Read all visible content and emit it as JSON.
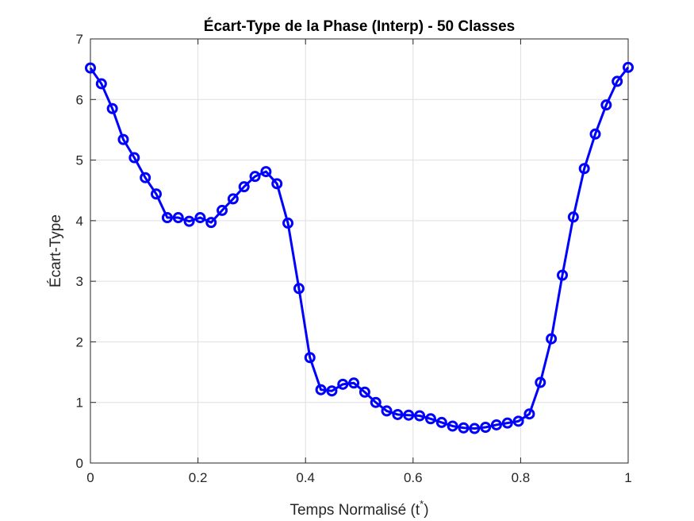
{
  "chart_data": {
    "type": "line",
    "title": "Écart-Type de la Phase (Interp) - 50 Classes",
    "xlabel": "Temps Normalisé (t",
    "xlabel_superscript": "*",
    "xlabel_suffix": ")",
    "ylabel": "Écart-Type",
    "xlim": [
      0,
      1
    ],
    "ylim": [
      0,
      7
    ],
    "xticks": [
      0,
      0.2,
      0.4,
      0.6,
      0.8,
      1
    ],
    "xtick_labels": [
      "0",
      "0.2",
      "0.4",
      "0.6",
      "0.8",
      "1"
    ],
    "yticks": [
      0,
      1,
      2,
      3,
      4,
      5,
      6,
      7
    ],
    "ytick_labels": [
      "0",
      "1",
      "2",
      "3",
      "4",
      "5",
      "6",
      "7"
    ],
    "grid": true,
    "color": "#0000ff",
    "marker": "circle",
    "series": [
      {
        "x": [
          0,
          0.0204,
          0.0408,
          0.0612,
          0.0816,
          0.102,
          0.1224,
          0.1429,
          0.1633,
          0.1837,
          0.2041,
          0.2245,
          0.2449,
          0.2653,
          0.2857,
          0.3061,
          0.3265,
          0.3469,
          0.3673,
          0.3878,
          0.4082,
          0.4286,
          0.449,
          0.4694,
          0.4898,
          0.5102,
          0.5306,
          0.551,
          0.5714,
          0.5918,
          0.6122,
          0.6327,
          0.6531,
          0.6735,
          0.6939,
          0.7143,
          0.7347,
          0.7551,
          0.7755,
          0.7959,
          0.8163,
          0.8367,
          0.8571,
          0.8776,
          0.898,
          0.9184,
          0.9388,
          0.9592,
          0.9796,
          1
        ],
        "values": [
          6.52,
          6.26,
          5.85,
          5.34,
          5.04,
          4.71,
          4.44,
          4.05,
          4.05,
          3.99,
          4.05,
          3.97,
          4.17,
          4.36,
          4.56,
          4.73,
          4.81,
          4.61,
          3.96,
          2.88,
          1.74,
          1.21,
          1.19,
          1.3,
          1.32,
          1.17,
          1.0,
          0.86,
          0.8,
          0.79,
          0.78,
          0.73,
          0.67,
          0.61,
          0.58,
          0.57,
          0.59,
          0.63,
          0.66,
          0.69,
          0.81,
          1.33,
          2.05,
          3.1,
          4.06,
          4.86,
          5.43,
          5.91,
          6.3,
          6.53
        ]
      }
    ]
  }
}
